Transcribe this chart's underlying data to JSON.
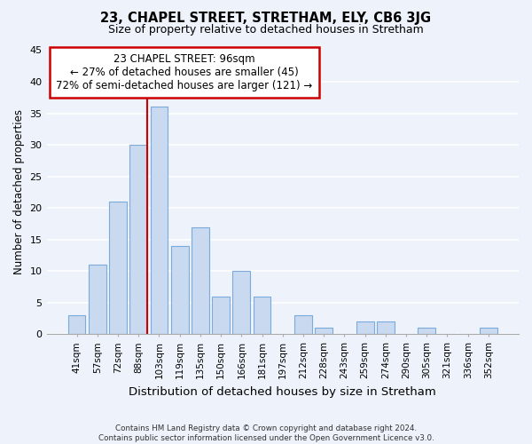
{
  "title": "23, CHAPEL STREET, STRETHAM, ELY, CB6 3JG",
  "subtitle": "Size of property relative to detached houses in Stretham",
  "xlabel": "Distribution of detached houses by size in Stretham",
  "ylabel": "Number of detached properties",
  "bar_color": "#c8d9f0",
  "bar_edge_color": "#7aabdb",
  "categories": [
    "41sqm",
    "57sqm",
    "72sqm",
    "88sqm",
    "103sqm",
    "119sqm",
    "135sqm",
    "150sqm",
    "166sqm",
    "181sqm",
    "197sqm",
    "212sqm",
    "228sqm",
    "243sqm",
    "259sqm",
    "274sqm",
    "290sqm",
    "305sqm",
    "321sqm",
    "336sqm",
    "352sqm"
  ],
  "values": [
    3,
    11,
    21,
    30,
    36,
    14,
    17,
    6,
    10,
    6,
    0,
    3,
    1,
    0,
    2,
    2,
    0,
    1,
    0,
    0,
    1
  ],
  "ylim": [
    0,
    45
  ],
  "yticks": [
    0,
    5,
    10,
    15,
    20,
    25,
    30,
    35,
    40,
    45
  ],
  "marker_label": "23 CHAPEL STREET: 96sqm",
  "annotation_line1": "← 27% of detached houses are smaller (45)",
  "annotation_line2": "72% of semi-detached houses are larger (121) →",
  "marker_color": "#cc0000",
  "background_color": "#edf2fb",
  "grid_color": "#ffffff",
  "footer_line1": "Contains HM Land Registry data © Crown copyright and database right 2024.",
  "footer_line2": "Contains public sector information licensed under the Open Government Licence v3.0."
}
